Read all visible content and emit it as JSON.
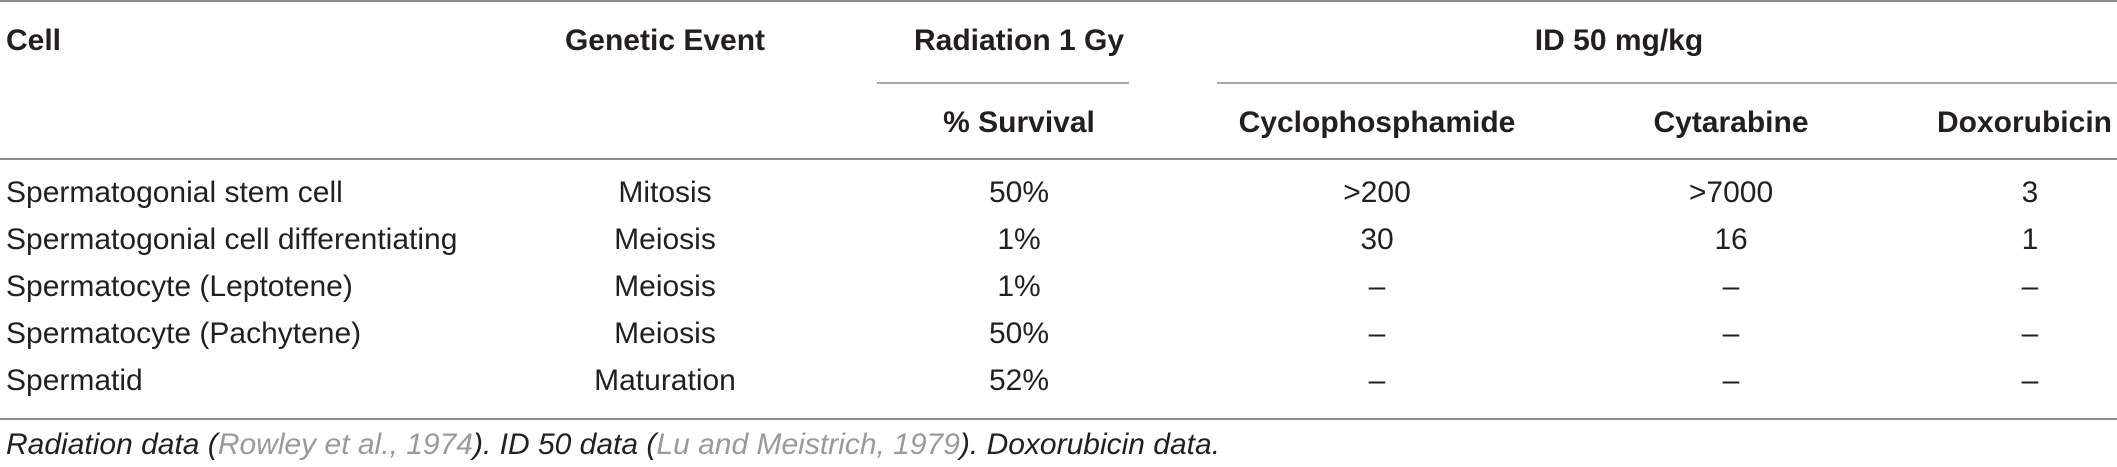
{
  "table": {
    "headers": {
      "cell": "Cell",
      "genetic_event": "Genetic Event",
      "radiation": "Radiation 1 Gy",
      "id50": "ID 50 mg/kg",
      "survival": "% Survival",
      "cyclophosphamide": "Cyclophosphamide",
      "cytarabine": "Cytarabine",
      "doxorubicin": "Doxorubicin"
    },
    "rows": [
      {
        "cell": "Spermatogonial stem cell",
        "event": "Mitosis",
        "survival": "50%",
        "cyclo": ">200",
        "cytarabine": ">7000",
        "doxo": "3"
      },
      {
        "cell": "Spermatogonial cell differentiating",
        "event": "Meiosis",
        "survival": "1%",
        "cyclo": "30",
        "cytarabine": "16",
        "doxo": "1"
      },
      {
        "cell": "Spermatocyte (Leptotene)",
        "event": "Meiosis",
        "survival": "1%",
        "cyclo": "–",
        "cytarabine": "–",
        "doxo": "–"
      },
      {
        "cell": "Spermatocyte (Pachytene)",
        "event": "Meiosis",
        "survival": "50%",
        "cyclo": "–",
        "cytarabine": "–",
        "doxo": "–"
      },
      {
        "cell": "Spermatid",
        "event": "Maturation",
        "survival": "52%",
        "cyclo": "–",
        "cytarabine": "–",
        "doxo": "–"
      }
    ]
  },
  "footnote": {
    "part1": "Radiation data (",
    "ref1": "Rowley et al., 1974",
    "part2": "). ID 50 data (",
    "ref2": "Lu and Meistrich, 1979",
    "part3": "). Doxorubicin data."
  }
}
